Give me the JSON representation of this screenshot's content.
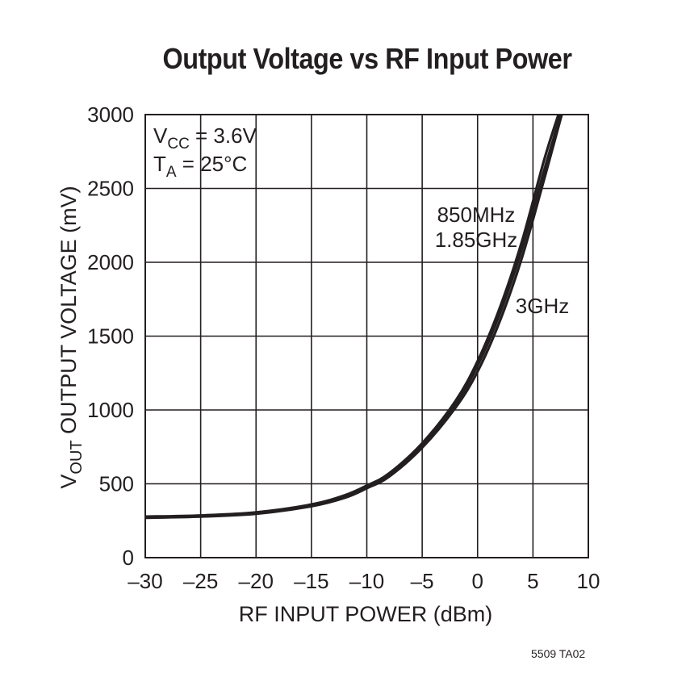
{
  "chart_data": {
    "type": "line",
    "title": "Output Voltage vs RF Input Power",
    "xlabel": "RF INPUT POWER (dBm)",
    "ylabel": {
      "main": "V",
      "sub": "OUT",
      "rest": " OUTPUT VOLTAGE (mV)"
    },
    "xlim": [
      -30,
      10
    ],
    "ylim": [
      0,
      3000
    ],
    "x_ticks": [
      -30,
      -25,
      -20,
      -15,
      -10,
      -5,
      0,
      5,
      10
    ],
    "x_tick_labels": [
      "–30",
      "–25",
      "–20",
      "–15",
      "–10",
      "–5",
      "0",
      "5",
      "10"
    ],
    "y_ticks": [
      0,
      500,
      1000,
      1500,
      2000,
      2500,
      3000
    ],
    "y_tick_labels": [
      "0",
      "500",
      "1000",
      "1500",
      "2000",
      "2500",
      "3000"
    ],
    "grid": true,
    "conditions": [
      {
        "main": "V",
        "sub": "CC",
        "rest": " = 3.6V"
      },
      {
        "main": "T",
        "sub": "A",
        "rest": " = 25°C"
      }
    ],
    "series": [
      {
        "name": "850MHz",
        "x": [
          -30,
          -25,
          -20,
          -15,
          -12,
          -10,
          -8,
          -5,
          -2,
          0,
          2,
          4,
          6,
          7.5
        ],
        "y": [
          275,
          283,
          303,
          355,
          415,
          480,
          560,
          760,
          1040,
          1300,
          1650,
          2090,
          2620,
          3000
        ]
      },
      {
        "name": "1.85GHz",
        "x": [
          -30,
          -25,
          -20,
          -15,
          -12,
          -10,
          -8,
          -5,
          -2,
          0,
          2,
          4,
          6,
          7.3
        ],
        "y": [
          278,
          286,
          307,
          360,
          422,
          488,
          570,
          775,
          1060,
          1330,
          1690,
          2140,
          2690,
          3000
        ]
      },
      {
        "name": "3GHz",
        "x": [
          -30,
          -25,
          -20,
          -15,
          -12,
          -10,
          -8,
          -5,
          -2,
          0,
          2,
          4,
          6,
          7.6
        ],
        "y": [
          270,
          278,
          297,
          348,
          405,
          470,
          548,
          745,
          1015,
          1260,
          1600,
          2030,
          2560,
          3000
        ]
      }
    ],
    "annotations": {
      "label_high": [
        "850MHz",
        "1.85GHz"
      ],
      "label_low": "3GHz"
    }
  },
  "figure_id": "5509 TA02"
}
